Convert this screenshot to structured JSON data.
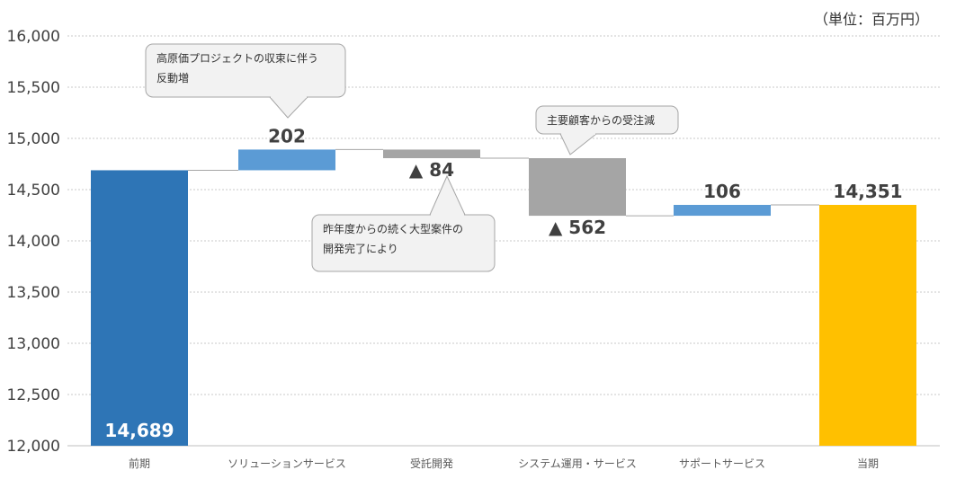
{
  "unit_label": "（単位：百万円）",
  "callouts": {
    "solution": "高原価プロジェクトの収束に伴う\n反動増",
    "contract_dev": "昨年度からの続く大型案件の\n開発完了により",
    "system_ops": "主要顧客からの受注減"
  },
  "chart_data": {
    "type": "waterfall",
    "title": "",
    "xlabel": "",
    "ylabel": "",
    "ylim": [
      12000,
      16000
    ],
    "y_ticks": [
      12000,
      12500,
      13000,
      13500,
      14000,
      14500,
      15000,
      15500,
      16000
    ],
    "y_tick_labels": [
      "12,000",
      "12,500",
      "13,000",
      "13,500",
      "14,000",
      "14,500",
      "15,000",
      "15,500",
      "16,000"
    ],
    "grid": true,
    "categories": [
      "前期",
      "ソリューションサービス",
      "受託開発",
      "システム運用・サービス",
      "サポートサービス",
      "当期"
    ],
    "bars": [
      {
        "category": "前期",
        "kind": "total",
        "start": 12000,
        "end": 14689,
        "label": "14,689",
        "color": "#2e75b6"
      },
      {
        "category": "ソリューションサービス",
        "kind": "increase",
        "start": 14689,
        "end": 14891,
        "label": "202",
        "color": "#5b9bd5"
      },
      {
        "category": "受託開発",
        "kind": "decrease",
        "start": 14891,
        "end": 14807,
        "label": "▲ 84",
        "color": "#a5a5a5"
      },
      {
        "category": "システム運用・サービス",
        "kind": "decrease",
        "start": 14807,
        "end": 14245,
        "label": "▲ 562",
        "color": "#a5a5a5"
      },
      {
        "category": "サポートサービス",
        "kind": "increase",
        "start": 14245,
        "end": 14351,
        "label": "106",
        "color": "#5b9bd5"
      },
      {
        "category": "当期",
        "kind": "total",
        "start": 12000,
        "end": 14351,
        "label": "14,351",
        "color": "#ffc000"
      }
    ]
  }
}
